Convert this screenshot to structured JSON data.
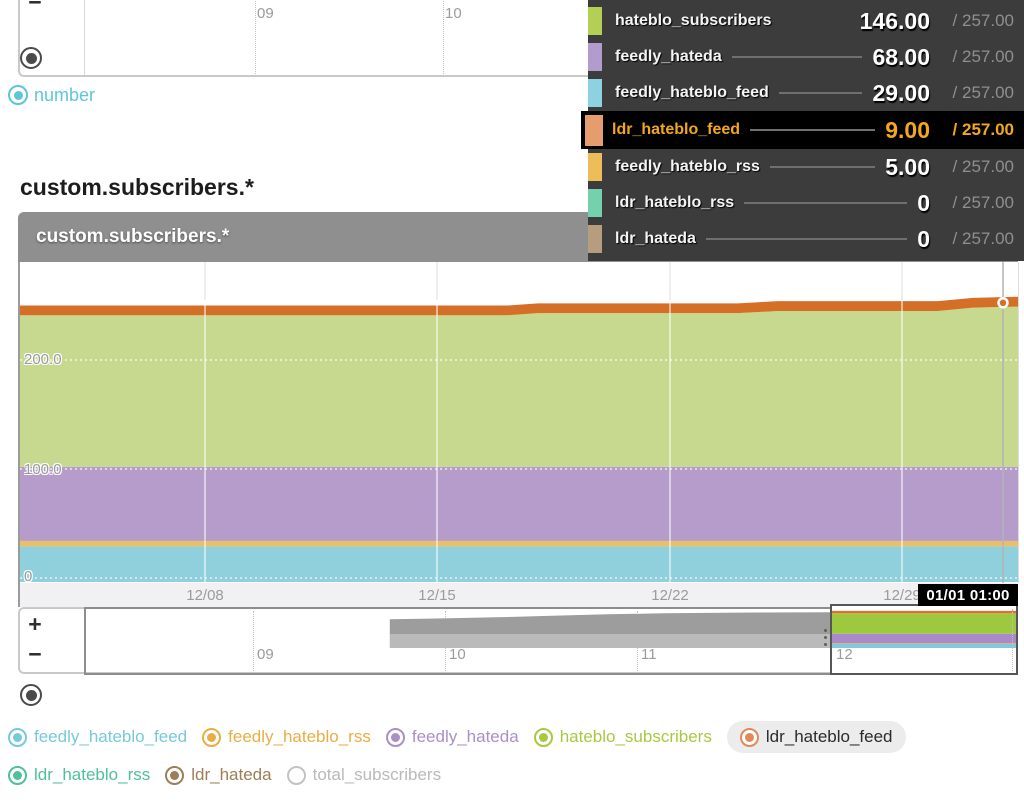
{
  "heading": "custom.subscribers.*",
  "top_slider": {
    "minus": "−",
    "tick_labels": [
      "09",
      "10"
    ]
  },
  "mode_radios": {
    "number_label": "number"
  },
  "chart_data": {
    "type": "area",
    "stacked": true,
    "title": "custom.subscribers.*",
    "x_ticks": [
      "12/08",
      "12/15",
      "12/22",
      "12/29"
    ],
    "y_ticks": [
      "200.0",
      "100.0",
      "0"
    ],
    "ylim": [
      0,
      290
    ],
    "grid": true,
    "hover_time": "01/01 01:00",
    "total_at_hover": 257,
    "series": [
      {
        "name": "feedly_hateblo_feed",
        "color": "#8fd0dc",
        "value": 29
      },
      {
        "name": "feedly_hateblo_rss",
        "color": "#e9c06a",
        "value": 5
      },
      {
        "name": "feedly_hateda",
        "color": "#b59ccb",
        "value": 68
      },
      {
        "name": "hateblo_subscribers",
        "color": "#c7d98e",
        "value": 146
      },
      {
        "name": "ldr_hateblo_feed",
        "color": "#d56f28",
        "value": 9
      },
      {
        "name": "ldr_hateblo_rss",
        "color": "#74d0ad",
        "value": 0
      },
      {
        "name": "ldr_hateda",
        "color": "#b69d80",
        "value": 0
      }
    ],
    "total_profile": [
      [
        0,
        250
      ],
      [
        0.49,
        250
      ],
      [
        0.52,
        252
      ],
      [
        0.72,
        252
      ],
      [
        0.76,
        254
      ],
      [
        0.92,
        254
      ],
      [
        0.955,
        257
      ],
      [
        1,
        258
      ]
    ]
  },
  "tooltip_legend": {
    "rows": [
      {
        "label": "hateblo_subscribers",
        "value": "146.00",
        "total": "/ 257.00",
        "color": "#b4cf56",
        "leader": false,
        "highlight": false
      },
      {
        "label": "feedly_hateda",
        "value": "68.00",
        "total": "/ 257.00",
        "color": "#b29ccd",
        "leader": true,
        "highlight": false
      },
      {
        "label": "feedly_hateblo_feed",
        "value": "29.00",
        "total": "/ 257.00",
        "color": "#8ed1e0",
        "leader": true,
        "highlight": false
      },
      {
        "label": "ldr_hateblo_feed",
        "value": "9.00",
        "total": "/ 257.00",
        "color": "#e69d6e",
        "leader": true,
        "highlight": true
      },
      {
        "label": "feedly_hateblo_rss",
        "value": "5.00",
        "total": "/ 257.00",
        "color": "#ecbd59",
        "leader": true,
        "highlight": false
      },
      {
        "label": "ldr_hateblo_rss",
        "value": "0",
        "total": "/ 257.00",
        "color": "#74d0ad",
        "leader": true,
        "highlight": false
      },
      {
        "label": "ldr_hateda",
        "value": "0",
        "total": "/ 257.00",
        "color": "#b69d80",
        "leader": true,
        "highlight": false
      }
    ]
  },
  "brush": {
    "plus": "+",
    "minus": "−",
    "tick_labels": [
      "09",
      "10",
      "11",
      "12"
    ],
    "overview_profile": [
      [
        0.326,
        205
      ],
      [
        0.37,
        210
      ],
      [
        0.44,
        219
      ],
      [
        0.5,
        230
      ],
      [
        0.56,
        241
      ],
      [
        0.62,
        248
      ],
      [
        0.7,
        253
      ],
      [
        0.8,
        256
      ],
      [
        1,
        257
      ]
    ],
    "silhouette_color": "#9d9d9d",
    "mini_colors": [
      "#7fcbdc",
      "#e8b54e",
      "#a98bcd",
      "#9ec93e",
      "#df7030"
    ]
  },
  "legend": {
    "row1": [
      {
        "label": "feedly_hateblo_feed",
        "color": "#77c9dc",
        "text_color": "#77c9dc",
        "selected": true
      },
      {
        "label": "feedly_hateblo_rss",
        "color": "#e7ae45",
        "text_color": "#e7ae45",
        "selected": true
      },
      {
        "label": "feedly_hateda",
        "color": "#aa90c7",
        "text_color": "#aa90c7",
        "selected": true
      },
      {
        "label": "hateblo_subscribers",
        "color": "#a9c841",
        "text_color": "#a9c841",
        "selected": true
      },
      {
        "label": "ldr_hateblo_feed",
        "color": "#e1895c",
        "text_color": "#2b2b2b",
        "selected": true,
        "pill_bg": "#ececec"
      }
    ],
    "row2": [
      {
        "label": "ldr_hateblo_rss",
        "color": "#4fc099",
        "text_color": "#4fc099",
        "selected": true
      },
      {
        "label": "ldr_hateda",
        "color": "#9c7e58",
        "text_color": "#9c7e58",
        "selected": true
      },
      {
        "label": "total_subscribers",
        "color": "#c2c2c2",
        "text_color": "#b9b9b9",
        "selected": false
      }
    ]
  },
  "ui_colors": {
    "radio_dark": "#4a4a4a",
    "radio_number": "#5bc6dc",
    "titlebar": "#8f8f8f",
    "highlight_text": "#f2a71c"
  }
}
